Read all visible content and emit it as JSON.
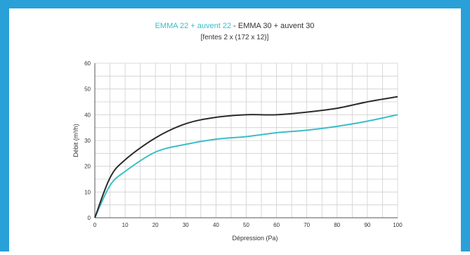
{
  "colors": {
    "frame": "#2aa0d8",
    "series1": "#3bbdc9",
    "series2": "#2b2b2b",
    "grid": "#cfcfcf",
    "axis": "#555555",
    "text": "#333333"
  },
  "chart_data": {
    "type": "line",
    "title_series1": "EMMA 22 + auvent 22",
    "title_sep": " - ",
    "title_series2": "EMMA 30 + auvent 30",
    "subtitle": "[fentes 2 x (172 x 12)]",
    "xlabel": "Dépression (Pa)",
    "ylabel": "Débit (m³/h)",
    "xlim": [
      0,
      100
    ],
    "ylim": [
      0,
      60
    ],
    "xticks": [
      0,
      10,
      20,
      30,
      40,
      50,
      60,
      70,
      80,
      90,
      100
    ],
    "yticks": [
      0,
      10,
      20,
      30,
      40,
      50,
      60
    ],
    "grid": true,
    "x": [
      0,
      5,
      10,
      20,
      30,
      40,
      50,
      60,
      70,
      80,
      90,
      100
    ],
    "series": [
      {
        "name": "EMMA 22 + auvent 22",
        "color_key": "series1",
        "values": [
          0,
          12.5,
          18,
          25.5,
          28.5,
          30.5,
          31.5,
          33,
          34,
          35.5,
          37.5,
          40
        ]
      },
      {
        "name": "EMMA 30 + auvent 30",
        "color_key": "series2",
        "values": [
          0,
          15.5,
          22.5,
          31,
          36.5,
          39,
          40,
          40,
          41,
          42.5,
          45,
          47
        ]
      }
    ]
  }
}
